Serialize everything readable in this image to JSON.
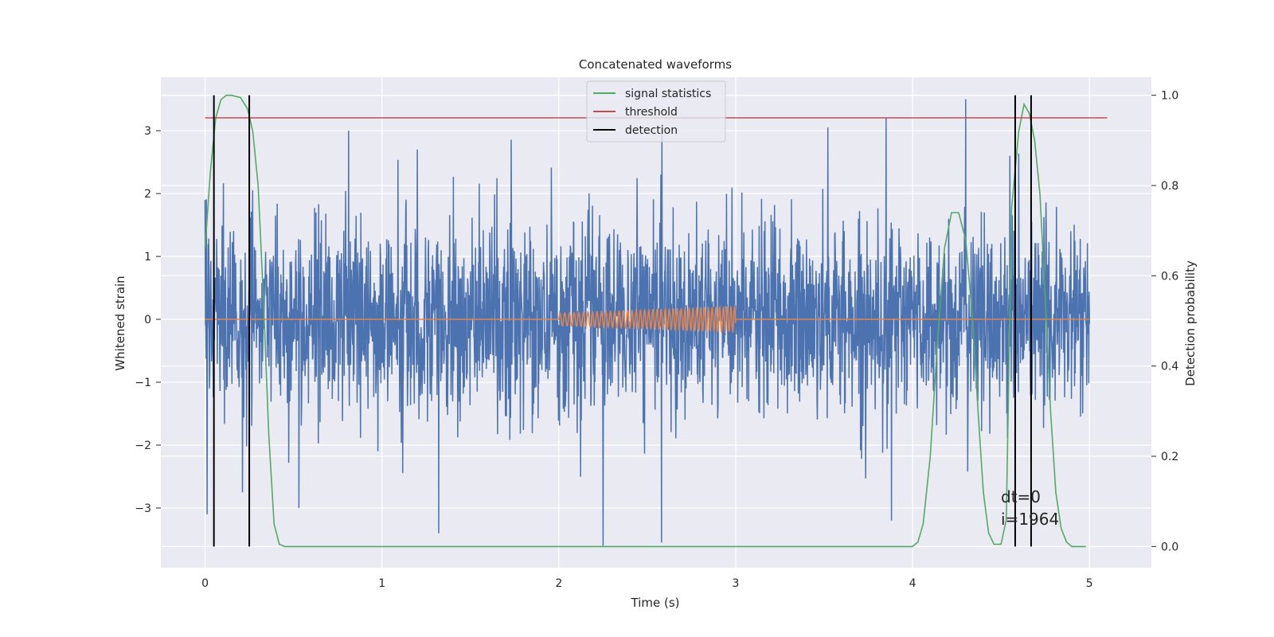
{
  "chart_data": {
    "type": "line",
    "title": "Concatenated waveforms",
    "xlabel": "Time (s)",
    "ylabel_left": "Whitened strain",
    "ylabel_right": "Detection probability",
    "xlim": [
      -0.25,
      5.35
    ],
    "ylim_left": [
      -3.95,
      3.85
    ],
    "ylim_right": [
      -0.047,
      1.04
    ],
    "x_ticks": [
      0,
      1,
      2,
      3,
      4,
      5
    ],
    "y_left_ticks": [
      -3,
      -2,
      -1,
      0,
      1,
      2,
      3
    ],
    "y_right_ticks": [
      0.0,
      0.2,
      0.4,
      0.6,
      0.8,
      1.0
    ],
    "grid": true,
    "legend_position": "top-center",
    "colors": {
      "strain": "#4c72b0",
      "injected_signal": "#dd8452",
      "signal_statistics": "#55a868",
      "threshold": "#c44e52",
      "detection": "#000000",
      "background": "#eaeaf2",
      "grid": "#ffffff"
    },
    "legend": [
      {
        "label": "signal statistics",
        "color": "#55a868"
      },
      {
        "label": "threshold",
        "color": "#c44e52"
      },
      {
        "label": "detection",
        "color": "#000000"
      }
    ],
    "series": [
      {
        "name": "signal statistics",
        "axis": "right",
        "x": [
          0.0,
          0.03,
          0.06,
          0.09,
          0.12,
          0.15,
          0.2,
          0.24,
          0.27,
          0.3,
          0.33,
          0.36,
          0.39,
          0.42,
          0.45,
          1.0,
          2.0,
          3.0,
          3.8,
          4.0,
          4.03,
          4.06,
          4.1,
          4.14,
          4.18,
          4.22,
          4.26,
          4.3,
          4.34,
          4.37,
          4.4,
          4.43,
          4.46,
          4.5,
          4.53,
          4.56,
          4.6,
          4.63,
          4.66,
          4.69,
          4.72,
          4.75,
          4.78,
          4.81,
          4.84,
          4.87,
          4.9,
          4.95,
          4.98
        ],
        "values": [
          0.66,
          0.83,
          0.95,
          0.99,
          1.0,
          1.0,
          0.995,
          0.97,
          0.92,
          0.8,
          0.55,
          0.25,
          0.05,
          0.005,
          0.0,
          0.0,
          0.0,
          0.0,
          0.0,
          0.0,
          0.01,
          0.05,
          0.2,
          0.45,
          0.66,
          0.74,
          0.74,
          0.68,
          0.5,
          0.3,
          0.12,
          0.03,
          0.005,
          0.005,
          0.06,
          0.75,
          0.92,
          0.98,
          0.96,
          0.9,
          0.78,
          0.55,
          0.3,
          0.12,
          0.04,
          0.01,
          0.0,
          0.0,
          0.0
        ]
      },
      {
        "name": "threshold",
        "axis": "right",
        "x": [
          0.0,
          5.1
        ],
        "values": [
          0.95,
          0.95
        ]
      }
    ],
    "strain": {
      "axis": "left",
      "x_range": [
        0.0,
        5.0
      ],
      "typical_amplitude": 0.75,
      "visible_extrema": [
        {
          "x": 0.0,
          "y": 1.9
        },
        {
          "x": 0.01,
          "y": -3.1
        },
        {
          "x": 0.21,
          "y": -2.75
        },
        {
          "x": 0.53,
          "y": -3.0
        },
        {
          "x": 0.81,
          "y": 3.0
        },
        {
          "x": 1.2,
          "y": 2.7
        },
        {
          "x": 1.32,
          "y": -3.4
        },
        {
          "x": 2.25,
          "y": -3.6
        },
        {
          "x": 2.58,
          "y": -3.55
        },
        {
          "x": 2.55,
          "y": 3.1
        },
        {
          "x": 3.52,
          "y": 3.05
        },
        {
          "x": 3.85,
          "y": 3.2
        },
        {
          "x": 3.88,
          "y": -3.2
        },
        {
          "x": 4.3,
          "y": 3.5
        },
        {
          "x": 4.55,
          "y": 2.6
        }
      ]
    },
    "injected_signal": {
      "axis": "left",
      "x_range": [
        2.0,
        3.0
      ],
      "amplitude_start": 0.1,
      "amplitude_end": 0.2,
      "cycles": 37
    },
    "detections": [
      0.05,
      0.25,
      4.58,
      4.67
    ],
    "annotations": [
      "dt=0",
      "i=1964"
    ]
  }
}
